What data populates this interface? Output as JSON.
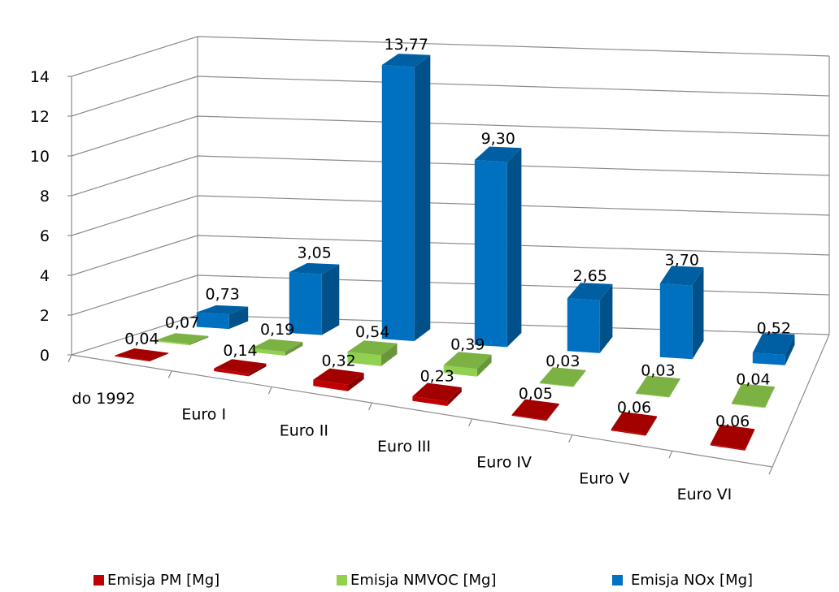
{
  "chart_data": {
    "type": "bar",
    "variant": "3d-column",
    "categories": [
      "do 1992",
      "Euro I",
      "Euro II",
      "Euro III",
      "Euro IV",
      "Euro V",
      "Euro VI"
    ],
    "series": [
      {
        "name": "Emisja PM [Mg]",
        "values": [
          0.04,
          0.14,
          0.32,
          0.23,
          0.05,
          0.06,
          0.06
        ],
        "labels": [
          "0,04",
          "0,14",
          "0,32",
          "0,23",
          "0,05",
          "0,06",
          "0,06"
        ],
        "color": "#c00000"
      },
      {
        "name": "Emisja NMVOC [Mg]",
        "values": [
          0.07,
          0.19,
          0.54,
          0.39,
          0.03,
          0.03,
          0.04
        ],
        "labels": [
          "0,07",
          "0,19",
          "0,54",
          "0,39",
          "0,03",
          "0,03",
          "0,04"
        ],
        "color": "#92d050"
      },
      {
        "name": "Emisja NOx [Mg]",
        "values": [
          0.73,
          3.05,
          13.77,
          9.3,
          2.65,
          3.7,
          0.52
        ],
        "labels": [
          "0,73",
          "3,05",
          "13,77",
          "9,30",
          "2,65",
          "3,70",
          "0,52"
        ],
        "color": "#0070c0"
      }
    ],
    "y_ticks": [
      "0",
      "2",
      "4",
      "6",
      "8",
      "10",
      "12",
      "14"
    ],
    "ylim": [
      0,
      14
    ],
    "grid": true,
    "legend_position": "bottom"
  }
}
